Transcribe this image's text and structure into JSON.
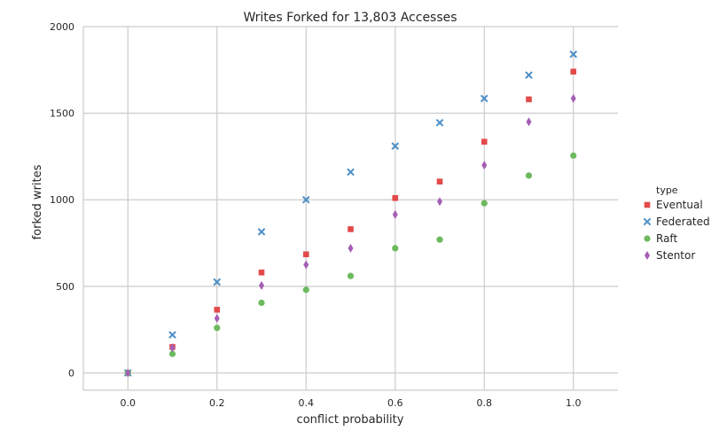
{
  "chart_data": {
    "type": "scatter",
    "title": "Writes Forked for 13,803 Accesses",
    "xlabel": "conflict probability",
    "ylabel": "forked writes",
    "xlim": [
      -0.1,
      1.1
    ],
    "ylim": [
      -100,
      2000
    ],
    "xticks": [
      0.0,
      0.2,
      0.4,
      0.6,
      0.8,
      1.0
    ],
    "xtick_labels": [
      "0.0",
      "0.2",
      "0.4",
      "0.6",
      "0.8",
      "1.0"
    ],
    "yticks": [
      0,
      500,
      1000,
      1500,
      2000
    ],
    "ytick_labels": [
      "0",
      "500",
      "1000",
      "1500",
      "2000"
    ],
    "grid": true,
    "legend_title": "type",
    "legend_position": "right",
    "x": [
      0.0,
      0.1,
      0.2,
      0.3,
      0.4,
      0.5,
      0.6,
      0.7,
      0.8,
      0.9,
      1.0
    ],
    "series": [
      {
        "name": "Eventual",
        "marker": "square",
        "color": "#e24a4a",
        "values": [
          0,
          150,
          365,
          580,
          685,
          830,
          1010,
          1105,
          1335,
          1580,
          1740
        ]
      },
      {
        "name": "Federated",
        "marker": "x",
        "color": "#4d8fc7",
        "values": [
          0,
          220,
          525,
          815,
          1000,
          1160,
          1310,
          1445,
          1585,
          1720,
          1840
        ]
      },
      {
        "name": "Raft",
        "marker": "circle",
        "color": "#6dba5e",
        "values": [
          0,
          110,
          260,
          405,
          480,
          560,
          720,
          770,
          980,
          1140,
          1255
        ]
      },
      {
        "name": "Stentor",
        "marker": "diamond",
        "color": "#a55eb4",
        "values": [
          0,
          145,
          315,
          505,
          625,
          720,
          915,
          990,
          1200,
          1450,
          1585
        ]
      }
    ]
  }
}
